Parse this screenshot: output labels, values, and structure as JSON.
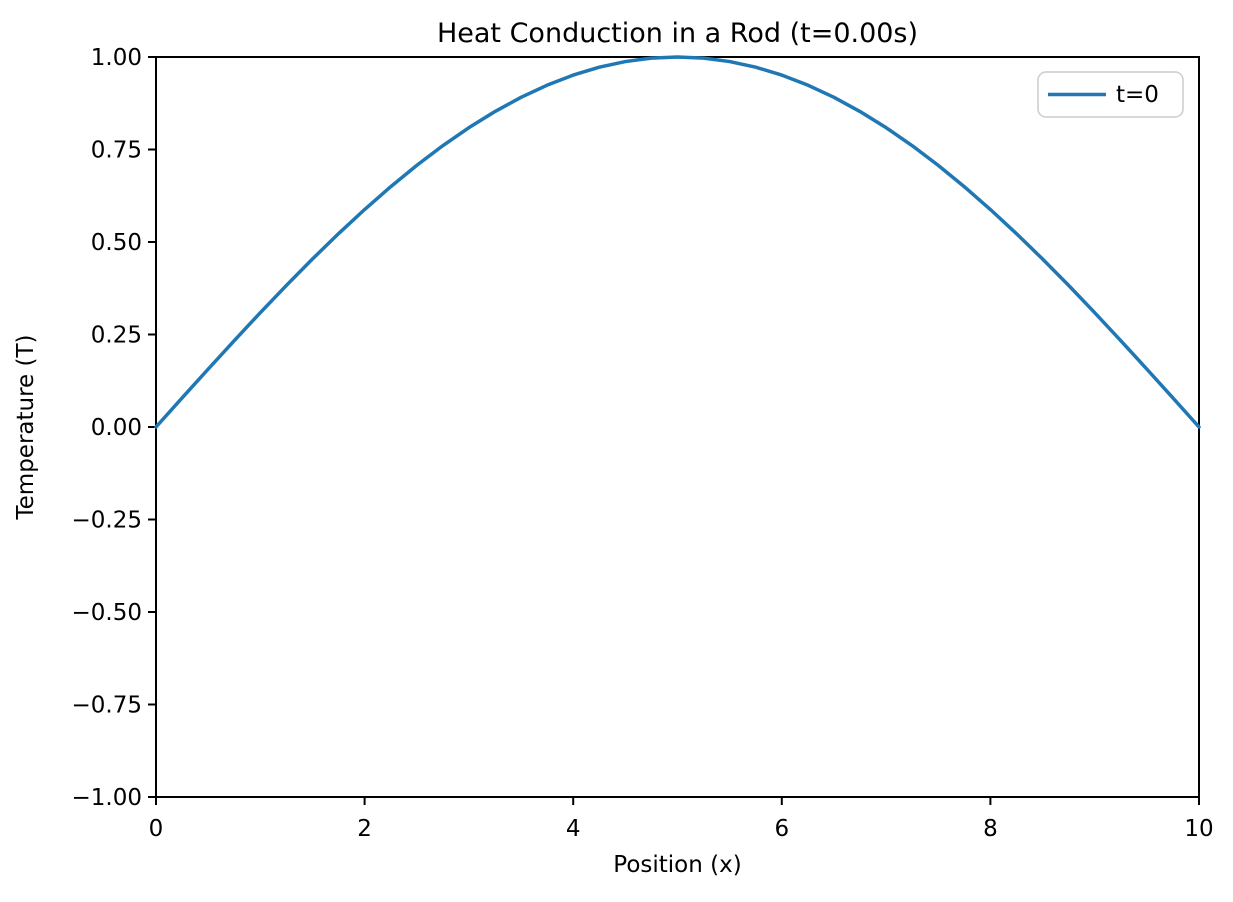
{
  "figure": {
    "background": "#ffffff",
    "text_color": "#000000",
    "spine_color": "#000000"
  },
  "chart_data": {
    "type": "line",
    "title": "Heat Conduction in a Rod (t=0.00s)",
    "xlabel": "Position (x)",
    "ylabel": "Temperature (T)",
    "xlim": [
      0,
      10
    ],
    "ylim": [
      -1,
      1
    ],
    "xticks": [
      0,
      2,
      4,
      6,
      8,
      10
    ],
    "xtick_labels": [
      "0",
      "2",
      "4",
      "6",
      "8",
      "10"
    ],
    "yticks": [
      1.0,
      0.75,
      0.5,
      0.25,
      0.0,
      -0.25,
      -0.5,
      -0.75,
      -1.0
    ],
    "ytick_labels": [
      "1.00",
      "0.75",
      "0.50",
      "0.25",
      "0.00",
      "−0.25",
      "−0.50",
      "−0.75",
      "−1.00"
    ],
    "grid": false,
    "legend": {
      "position": "upper right",
      "entries": [
        {
          "label": "t=0",
          "color": "#1f77b4"
        }
      ]
    },
    "series": [
      {
        "name": "t=0",
        "color": "#1f77b4",
        "x": [
          0,
          0.25,
          0.5,
          0.75,
          1,
          1.25,
          1.5,
          1.75,
          2,
          2.25,
          2.5,
          2.75,
          3,
          3.25,
          3.5,
          3.75,
          4,
          4.25,
          4.5,
          4.75,
          5,
          5.25,
          5.5,
          5.75,
          6,
          6.25,
          6.5,
          6.75,
          7,
          7.25,
          7.5,
          7.75,
          8,
          8.25,
          8.5,
          8.75,
          9,
          9.25,
          9.5,
          9.75,
          10
        ],
        "y": [
          0,
          0.0785,
          0.1564,
          0.2334,
          0.309,
          0.3827,
          0.454,
          0.5225,
          0.5878,
          0.6494,
          0.7071,
          0.7604,
          0.809,
          0.8526,
          0.891,
          0.9239,
          0.9511,
          0.9724,
          0.9877,
          0.9969,
          1,
          0.9969,
          0.9877,
          0.9724,
          0.9511,
          0.9239,
          0.891,
          0.8526,
          0.809,
          0.7604,
          0.7071,
          0.6494,
          0.5878,
          0.5225,
          0.454,
          0.3827,
          0.309,
          0.2334,
          0.1564,
          0.0785,
          0
        ]
      }
    ]
  }
}
